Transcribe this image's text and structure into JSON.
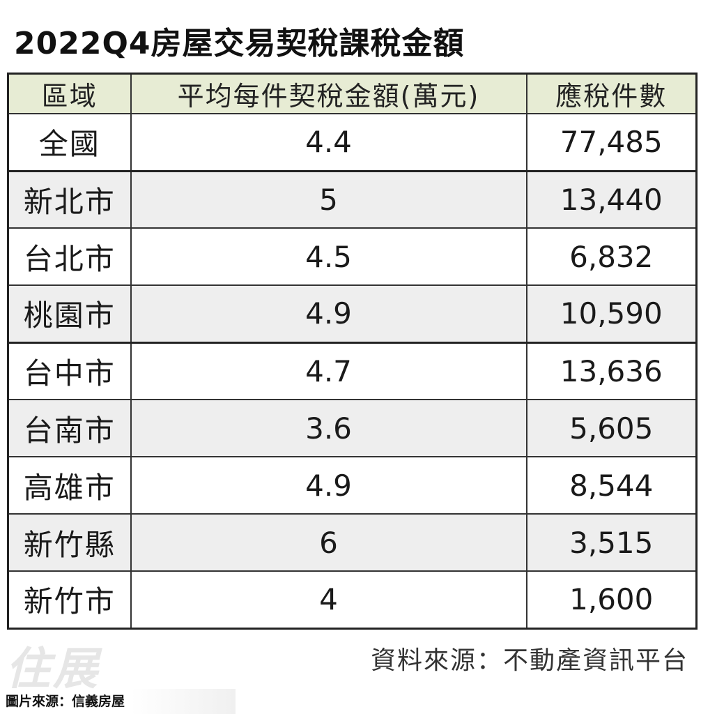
{
  "chart_data": {
    "type": "table",
    "title": "2022Q4房屋交易契稅課稅金額",
    "columns": [
      "區域",
      "平均每件契稅金額(萬元)",
      "應稅件數"
    ],
    "rows": [
      {
        "region": "全國",
        "avg_tax": "4.4",
        "count": "77,485"
      },
      {
        "region": "新北市",
        "avg_tax": "5",
        "count": "13,440"
      },
      {
        "region": "台北市",
        "avg_tax": "4.5",
        "count": "6,832"
      },
      {
        "region": "桃園市",
        "avg_tax": "4.9",
        "count": "10,590"
      },
      {
        "region": "台中市",
        "avg_tax": "4.7",
        "count": "13,636"
      },
      {
        "region": "台南市",
        "avg_tax": "3.6",
        "count": "5,605"
      },
      {
        "region": "高雄市",
        "avg_tax": "4.9",
        "count": "8,544"
      },
      {
        "region": "新竹縣",
        "avg_tax": "6",
        "count": "3,515"
      },
      {
        "region": "新竹市",
        "avg_tax": "4",
        "count": "1,600"
      }
    ],
    "source": "資料來源：不動產資訊平台"
  },
  "watermark": "住展",
  "credit": "圖片來源：信義房屋",
  "colors": {
    "header_bg": "#e7ecd4",
    "row_alt_bg": "#eeeeee",
    "border": "#333333"
  }
}
